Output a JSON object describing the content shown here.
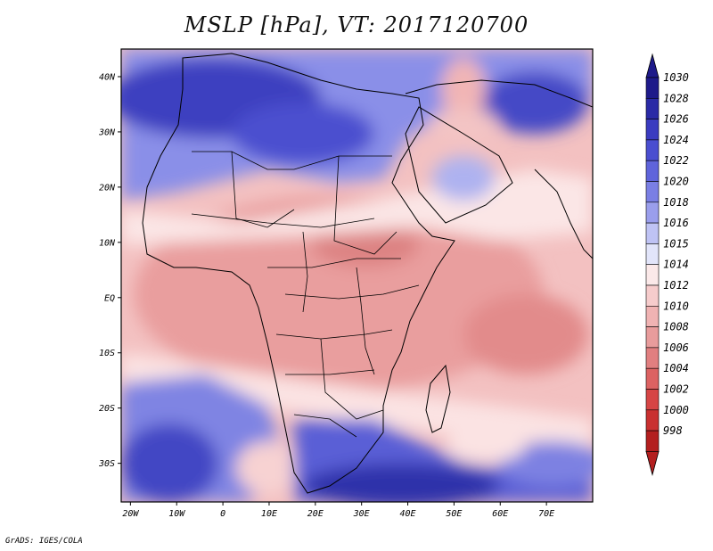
{
  "title": "MSLP [hPa], VT: 2017120700",
  "credit": "GrADS: IGES/COLA",
  "map": {
    "lon_range": [
      -22,
      80
    ],
    "lat_range": [
      -37,
      45
    ],
    "lon_ticks": [
      {
        "value": -20,
        "label": "20W"
      },
      {
        "value": -10,
        "label": "10W"
      },
      {
        "value": 0,
        "label": "0"
      },
      {
        "value": 10,
        "label": "10E"
      },
      {
        "value": 20,
        "label": "20E"
      },
      {
        "value": 30,
        "label": "30E"
      },
      {
        "value": 40,
        "label": "40E"
      },
      {
        "value": 50,
        "label": "50E"
      },
      {
        "value": 60,
        "label": "60E"
      },
      {
        "value": 70,
        "label": "70E"
      }
    ],
    "lat_ticks": [
      {
        "value": 40,
        "label": "40N"
      },
      {
        "value": 30,
        "label": "30N"
      },
      {
        "value": 20,
        "label": "20N"
      },
      {
        "value": 10,
        "label": "10N"
      },
      {
        "value": 0,
        "label": "EQ"
      },
      {
        "value": -10,
        "label": "10S"
      },
      {
        "value": -20,
        "label": "20S"
      },
      {
        "value": -30,
        "label": "30S"
      }
    ]
  },
  "colorbar": {
    "levels": [
      {
        "label": "1030",
        "color": "#1e1a8a"
      },
      {
        "label": "1028",
        "color": "#2a2aa6"
      },
      {
        "label": "1026",
        "color": "#3a3bc0"
      },
      {
        "label": "1024",
        "color": "#4a4ed0"
      },
      {
        "label": "1022",
        "color": "#5f64db"
      },
      {
        "label": "1020",
        "color": "#7a7fe4"
      },
      {
        "label": "1018",
        "color": "#9a9eec"
      },
      {
        "label": "1016",
        "color": "#bfc3f4"
      },
      {
        "label": "1015",
        "color": "#e2e5fa"
      },
      {
        "label": "1014",
        "color": "#fbe9e9"
      },
      {
        "label": "1012",
        "color": "#f6cccc"
      },
      {
        "label": "1010",
        "color": "#f0b3b3"
      },
      {
        "label": "1008",
        "color": "#e89c9c"
      },
      {
        "label": "1006",
        "color": "#e17f80"
      },
      {
        "label": "1004",
        "color": "#dc6262"
      },
      {
        "label": "1002",
        "color": "#d64545"
      },
      {
        "label": "1000",
        "color": "#c93030"
      },
      {
        "label": "998",
        "color": "#b31f1f"
      }
    ],
    "top_arrow_color": "#1e1a8a",
    "bottom_arrow_color": "#b31f1f"
  }
}
